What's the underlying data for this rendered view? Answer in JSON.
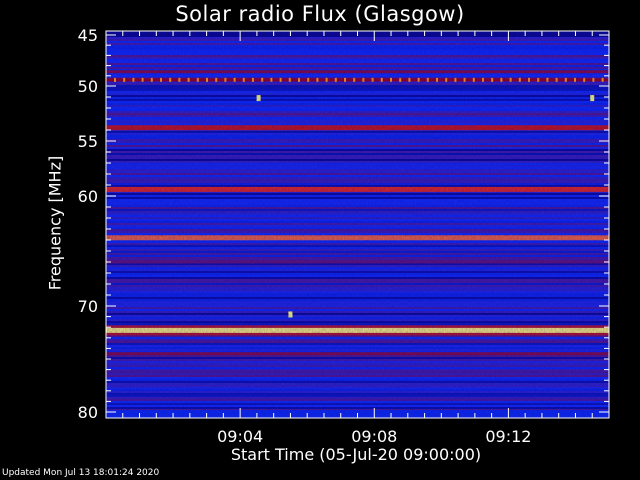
{
  "chart_data": {
    "type": "heatmap",
    "title": "Solar radio Flux (Glasgow)",
    "ylabel": "Frequency [MHz]",
    "xlabel": "Start Time (05-Jul-20 09:00:00)",
    "y_reversed": true,
    "ylim": [
      45,
      80
    ],
    "y_ticks": [
      45,
      50,
      55,
      60,
      70,
      80
    ],
    "y_tick_labels": [
      "45",
      "50",
      "55",
      "60",
      "70",
      "80"
    ],
    "x_range_minutes": [
      0,
      15
    ],
    "x_ticks_minutes": [
      4,
      8,
      12
    ],
    "x_tick_labels": [
      "09:04",
      "09:08",
      "09:12"
    ],
    "colormap": [
      "#0a0070",
      "#1030ff",
      "#b00000",
      "#ff3010",
      "#ffff80"
    ],
    "emission_bands": [
      {
        "freq_mhz": 48.6,
        "intensity": 0.45
      },
      {
        "freq_mhz": 49.4,
        "intensity": 0.5
      },
      {
        "freq_mhz": 53.8,
        "intensity": 0.62
      },
      {
        "freq_mhz": 59.4,
        "intensity": 0.72
      },
      {
        "freq_mhz": 63.8,
        "intensity": 0.82
      },
      {
        "freq_mhz": 66.0,
        "intensity": 0.4
      },
      {
        "freq_mhz": 72.3,
        "intensity": 1.0
      },
      {
        "freq_mhz": 74.5,
        "intensity": 0.45
      },
      {
        "freq_mhz": 76.2,
        "intensity": 0.35
      }
    ],
    "bright_spots": [
      {
        "time_min": 4.55,
        "freq_mhz": 51.1
      },
      {
        "time_min": 5.5,
        "freq_mhz": 70.8
      },
      {
        "time_min": 14.5,
        "freq_mhz": 51.1
      }
    ]
  },
  "footer": {
    "updated": "Updated Mon Jul 13 18:01:24 2020"
  }
}
